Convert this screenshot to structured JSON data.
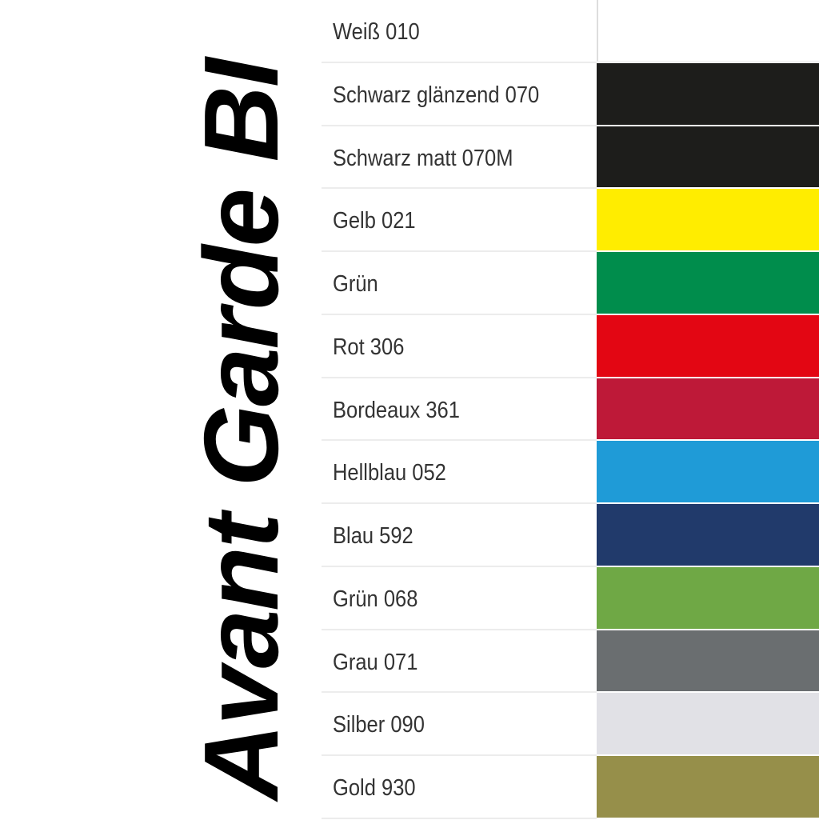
{
  "title": "Avant Garde BI",
  "colors": [
    {
      "label": "Weiß 010",
      "color": "#ffffff"
    },
    {
      "label": "Schwarz glänzend 070",
      "color": "#1d1d1b"
    },
    {
      "label": "Schwarz matt 070M",
      "color": "#1d1d1b"
    },
    {
      "label": "Gelb 021",
      "color": "#ffed00"
    },
    {
      "label": "Grün",
      "color": "#008d4c"
    },
    {
      "label": "Rot 306",
      "color": "#e30613"
    },
    {
      "label": "Bordeaux 361",
      "color": "#be1938"
    },
    {
      "label": "Hellblau 052",
      "color": "#1f9bd7"
    },
    {
      "label": "Blau 592",
      "color": "#213a6b"
    },
    {
      "label": "Grün 068",
      "color": "#6fa845"
    },
    {
      "label": "Grau 071",
      "color": "#6a6e70"
    },
    {
      "label": "Silber 090",
      "color": "#e1e1e6"
    },
    {
      "label": "Gold 930",
      "color": "#968f4a"
    }
  ]
}
